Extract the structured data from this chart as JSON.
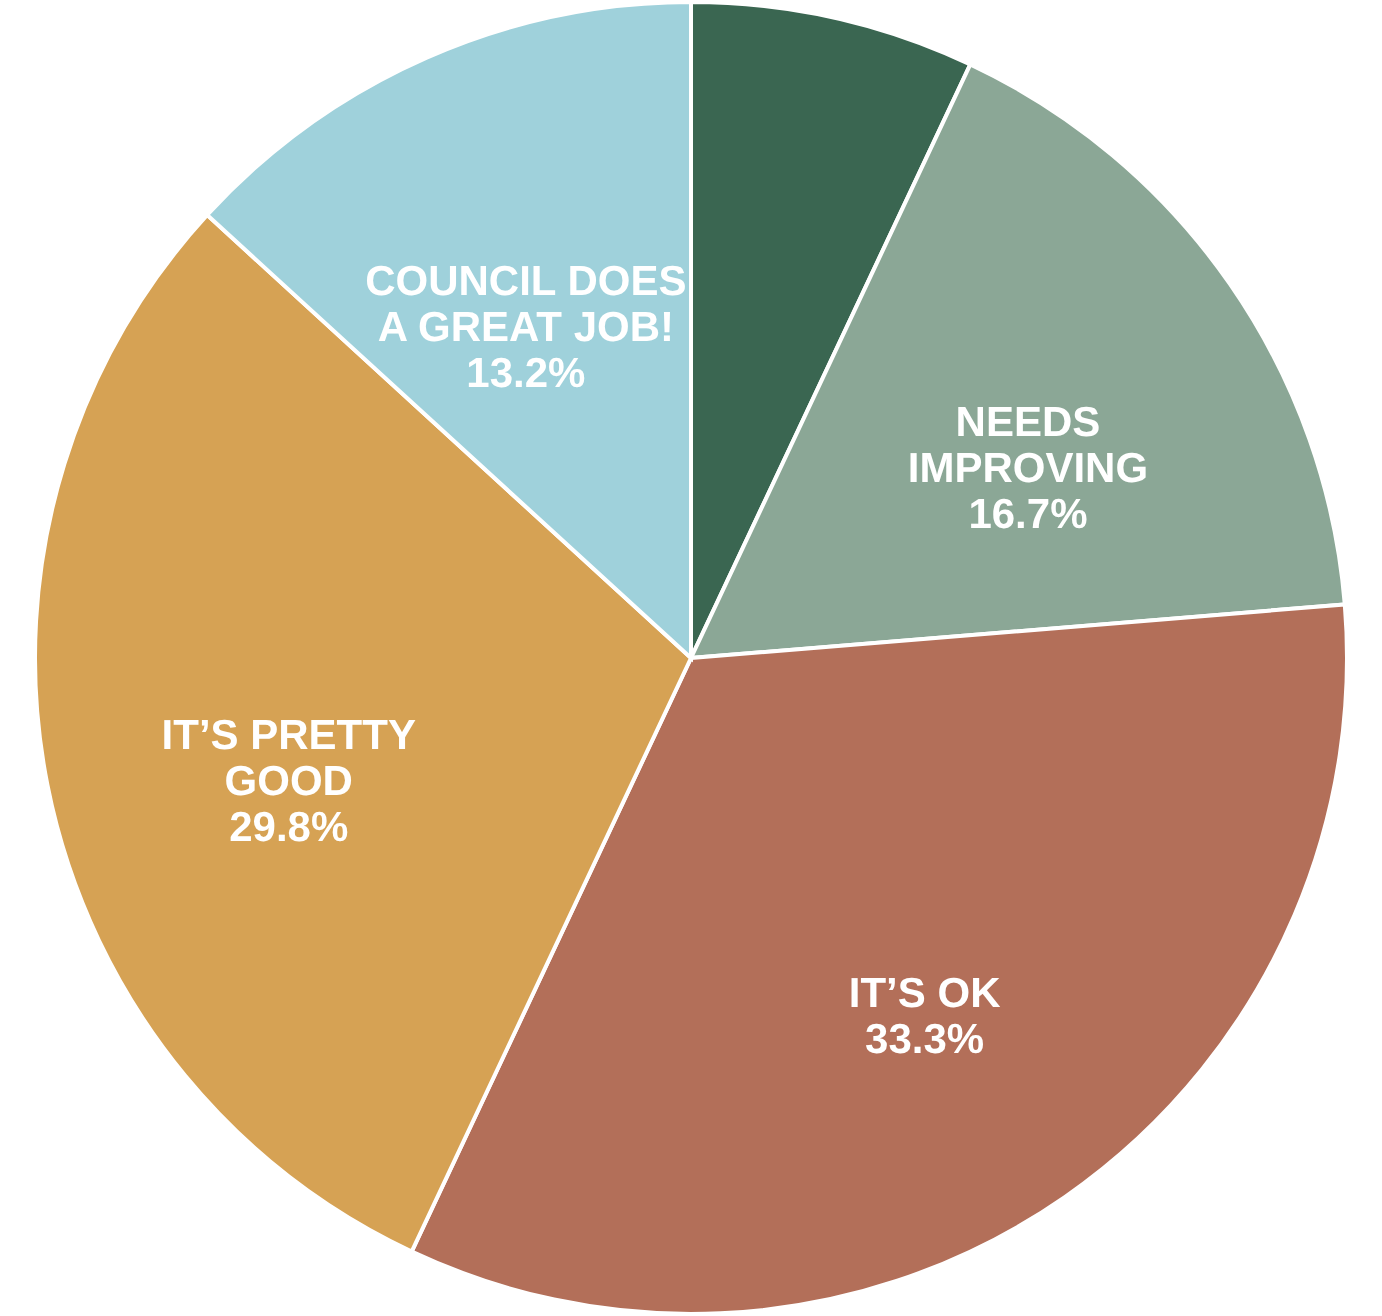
{
  "chart_data": {
    "type": "pie",
    "categories": [
      null,
      "NEEDS IMPROVING",
      "IT’S OK",
      "IT’S PRETTY GOOD",
      "COUNCIL DOES A GREAT JOB!"
    ],
    "values": [
      7.0,
      16.7,
      33.3,
      29.8,
      13.2
    ],
    "colors": [
      "#3a6651",
      "#8ba796",
      "#b36f59",
      "#d6a254",
      "#9fd1db"
    ],
    "value_labels": [
      null,
      "16.7%",
      "33.3%",
      "29.8%",
      "13.2%"
    ]
  }
}
